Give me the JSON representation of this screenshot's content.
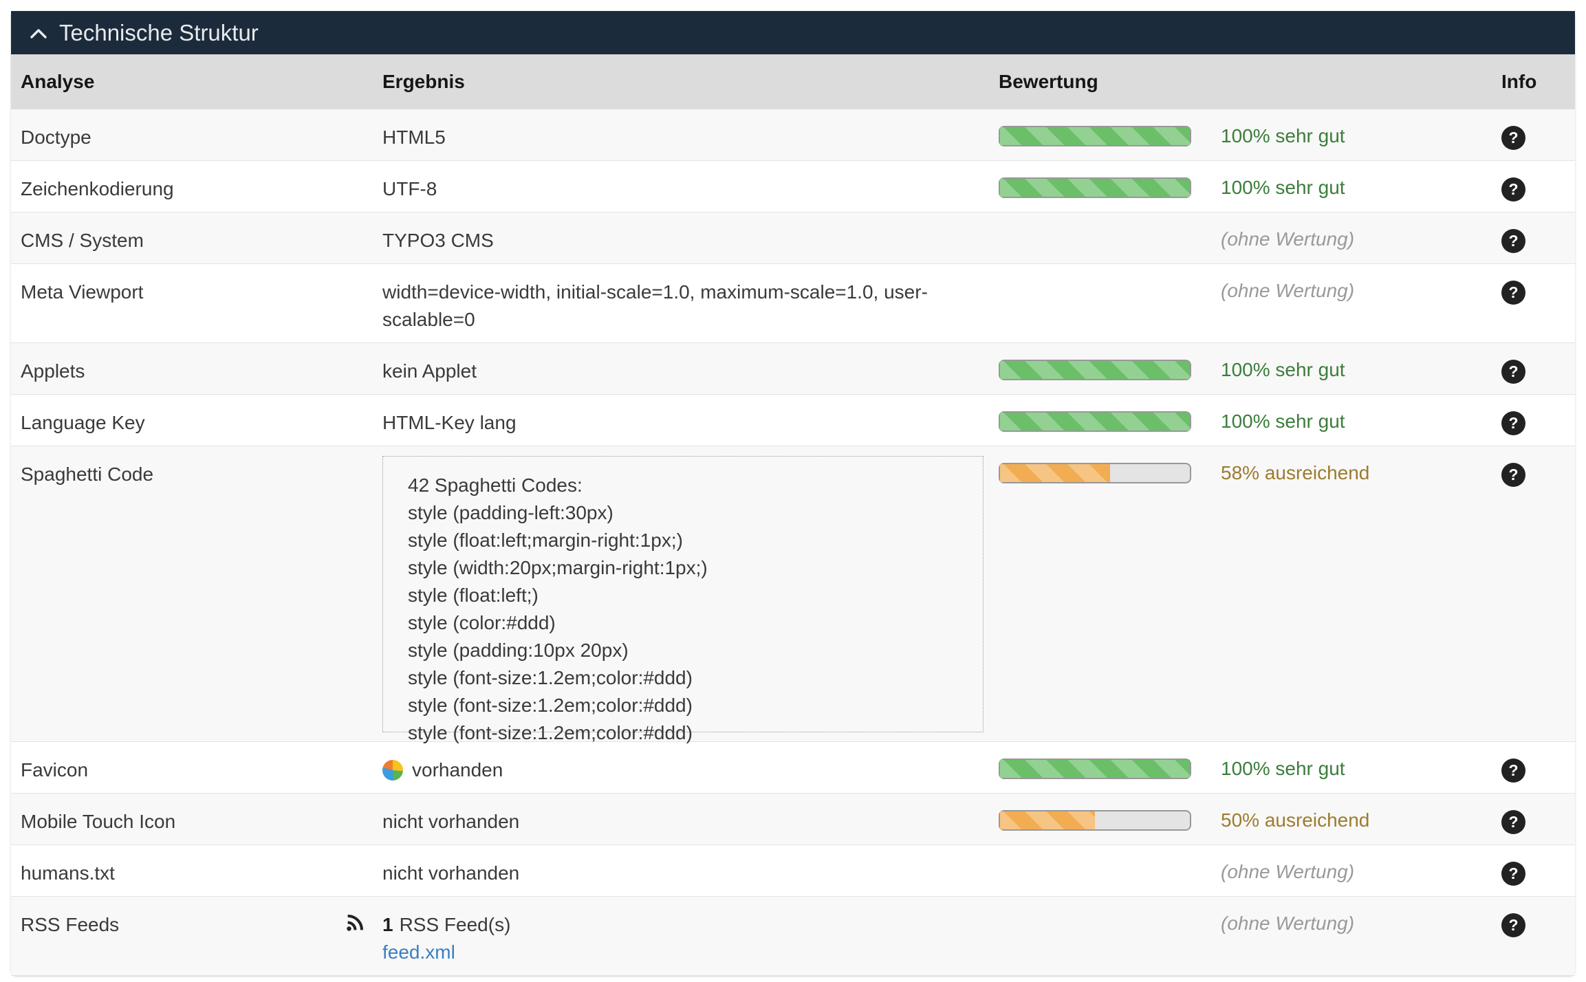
{
  "colors": {
    "navy": "#1c2b3b",
    "header_bg": "#dcdcdc",
    "row_alt": "#f8f8f8",
    "green_bar": "#6abf68",
    "orange_bar": "#f2ad53",
    "green_text": "#3b7d3b",
    "olive_text": "#9c7c2d",
    "muted_text": "#999999",
    "link": "#3a7fc2"
  },
  "section": {
    "title": "Technische Struktur",
    "collapse_icon": "chevron-up-icon"
  },
  "table": {
    "columns": {
      "analyse": "Analyse",
      "ergebnis": "Ergebnis",
      "bewertung": "Bewertung",
      "info": "Info"
    },
    "info_icon_glyph": "?",
    "rows": [
      {
        "label": "Doctype",
        "result": "HTML5",
        "rating": {
          "percent": 100,
          "label": "100% sehr gut",
          "level": "good"
        }
      },
      {
        "label": "Zeichenkodierung",
        "result": "UTF-8",
        "rating": {
          "percent": 100,
          "label": "100% sehr gut",
          "level": "good"
        }
      },
      {
        "label": "CMS / System",
        "result": "TYPO3 CMS",
        "rating": {
          "label": "(ohne Wertung)",
          "level": "none"
        }
      },
      {
        "label": "Meta Viewport",
        "result": "width=device-width, initial-scale=1.0, maximum-scale=1.0, user-scalable=0",
        "rating": {
          "label": "(ohne Wertung)",
          "level": "none"
        }
      },
      {
        "label": "Applets",
        "result": "kein Applet",
        "rating": {
          "percent": 100,
          "label": "100% sehr gut",
          "level": "good"
        }
      },
      {
        "label": "Language Key",
        "result": "HTML-Key lang",
        "rating": {
          "percent": 100,
          "label": "100% sehr gut",
          "level": "good"
        }
      },
      {
        "label": "Spaghetti Code",
        "result_box": [
          "42 Spaghetti Codes:",
          "style (padding-left:30px)",
          "style (float:left;margin-right:1px;)",
          "style (width:20px;margin-right:1px;)",
          "style (float:left;)",
          "style (color:#ddd)",
          "style (padding:10px 20px)",
          "style (font-size:1.2em;color:#ddd)",
          "style (font-size:1.2em;color:#ddd)",
          "style (font-size:1.2em;color:#ddd)"
        ],
        "rating": {
          "percent": 58,
          "label": "58% ausreichend",
          "level": "mid"
        }
      },
      {
        "label": "Favicon",
        "result": "vorhanden",
        "result_icon": "favicon",
        "rating": {
          "percent": 100,
          "label": "100% sehr gut",
          "level": "good"
        }
      },
      {
        "label": "Mobile Touch Icon",
        "result": "nicht vorhanden",
        "rating": {
          "percent": 50,
          "label": "50% ausreichend",
          "level": "mid"
        }
      },
      {
        "label": "humans.txt",
        "result": "nicht vorhanden",
        "rating": {
          "label": "(ohne Wertung)",
          "level": "none"
        }
      },
      {
        "label": "RSS Feeds",
        "result_icon": "rss",
        "result_bold": "1",
        "result": "RSS Feed(s)",
        "link": "feed.xml",
        "rating": {
          "label": "(ohne Wertung)",
          "level": "none"
        }
      }
    ]
  }
}
